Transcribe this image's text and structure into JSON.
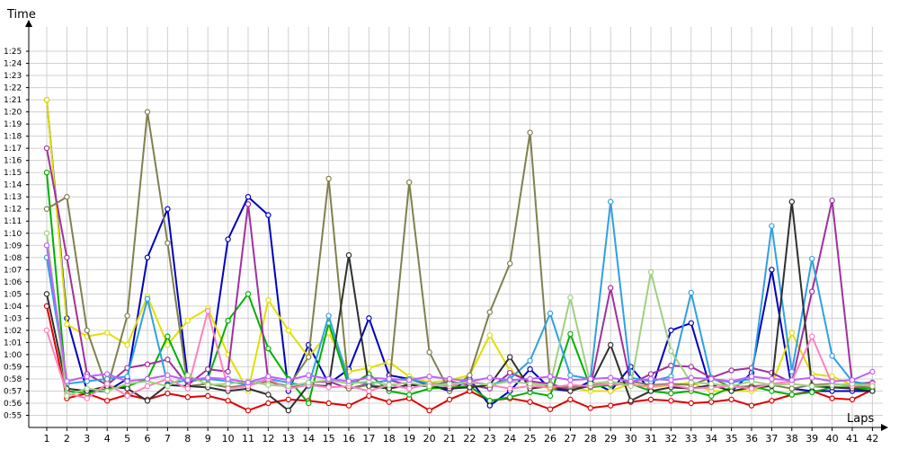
{
  "chart_data": {
    "type": "line",
    "ylabel": "Time",
    "xlabel": "Laps",
    "x_categories": [
      "1",
      "2",
      "3",
      "4",
      "5",
      "6",
      "7",
      "8",
      "9",
      "10",
      "11",
      "12",
      "13",
      "14",
      "15",
      "16",
      "17",
      "18",
      "19",
      "20",
      "21",
      "22",
      "23",
      "24",
      "25",
      "26",
      "27",
      "28",
      "29",
      "30",
      "31",
      "32",
      "33",
      "34",
      "35",
      "36",
      "37",
      "38",
      "39",
      "40",
      "41",
      "42"
    ],
    "y_tick_labels": [
      "0:55",
      "0:56",
      "0:57",
      "0:58",
      "0:59",
      "1:00",
      "1:01",
      "1:02",
      "1:03",
      "1:04",
      "1:05",
      "1:06",
      "1:07",
      "1:08",
      "1:09",
      "1:10",
      "1:11",
      "1:12",
      "1:13",
      "1:14",
      "1:15",
      "1:16",
      "1:17",
      "1:18",
      "1:19",
      "1:20",
      "1:21",
      "1:22",
      "1:23",
      "1:24",
      "1:25"
    ],
    "ylim_seconds": [
      54,
      87
    ],
    "grid": true,
    "legend": "none",
    "series": [
      {
        "color": "#e00000",
        "values": [
          64,
          56.4,
          56.8,
          56.2,
          56.7,
          56.3,
          56.8,
          56.5,
          56.6,
          56.2,
          55.4,
          56.0,
          56.3,
          56.2,
          56.0,
          55.8,
          56.6,
          56.1,
          56.4,
          55.4,
          56.3,
          57.0,
          56.2,
          56.4,
          56.1,
          55.5,
          56.3,
          55.6,
          55.8,
          56.1,
          56.3,
          56.2,
          56.0,
          56.1,
          56.3,
          55.8,
          56.2,
          56.7,
          57.0,
          56.4,
          56.3,
          57.1
        ]
      },
      {
        "color": "#0000c0",
        "values": [
          81,
          63,
          57,
          57,
          58,
          68,
          72,
          58,
          58,
          69.5,
          73,
          71.5,
          57,
          60.8,
          57.6,
          58.8,
          63,
          58.3,
          58,
          57.5,
          57,
          58,
          55.8,
          57,
          58.8,
          57.2,
          57,
          57.8,
          57,
          59,
          57,
          62,
          62.6,
          57,
          57,
          58.5,
          67,
          57.2,
          57,
          57,
          57,
          57
        ]
      },
      {
        "color": "#e0e000",
        "values": [
          81,
          62.5,
          61.5,
          61.8,
          60.8,
          64.8,
          60.8,
          62.8,
          63.8,
          60,
          57,
          64.5,
          62,
          59.8,
          61.8,
          58.6,
          58.9,
          59.4,
          58.2,
          57.7,
          57.9,
          58.3,
          61.6,
          58.7,
          57.7,
          57.2,
          57.3,
          57,
          57,
          57.6,
          57.3,
          57.5,
          57.7,
          57,
          57,
          57,
          57.5,
          61.8,
          58.4,
          58.2,
          57.5,
          57.3
        ]
      },
      {
        "color": "#00b000",
        "values": [
          75,
          57,
          56.8,
          57.2,
          57.4,
          58,
          61.5,
          57.8,
          58,
          62.8,
          65,
          60.5,
          58,
          56,
          62.6,
          57.4,
          58.4,
          57,
          56.7,
          57.2,
          57.3,
          57.4,
          56.2,
          56.5,
          56.9,
          56.6,
          61.7,
          57.3,
          57.5,
          57.6,
          57,
          56.8,
          57.0,
          56.6,
          57.3,
          57.4,
          57.0,
          56.7,
          56.9,
          57.3,
          57.3,
          57.2
        ]
      },
      {
        "color": "#a030a0",
        "values": [
          77,
          68,
          58.4,
          57.5,
          58.9,
          59.2,
          59.6,
          57.5,
          58.8,
          58.6,
          72.4,
          57.8,
          57.3,
          57.7,
          57.8,
          57.2,
          57.6,
          57.9,
          57.5,
          57.4,
          57.8,
          57.5,
          57.2,
          58.5,
          57.8,
          57.6,
          57.1,
          57.4,
          65.5,
          57.6,
          58.4,
          59.1,
          59.0,
          58.1,
          58.7,
          58.9,
          58.5,
          57.7,
          65.2,
          72.7,
          57.6,
          57.7
        ]
      },
      {
        "color": "#808050",
        "values": [
          72,
          73,
          62,
          57.2,
          63.2,
          80,
          69.2,
          57.4,
          57.6,
          57.3,
          57.5,
          57.8,
          57.4,
          59.8,
          74.5,
          57.2,
          57.5,
          57.3,
          74.2,
          60.2,
          57,
          58.3,
          63.5,
          67.5,
          78.3,
          57.4,
          57.3,
          57.5,
          57.6,
          57.8,
          57.5,
          57.6,
          57.5,
          58.1,
          57.3,
          57.4,
          57.5,
          57.2,
          57.5,
          57.6,
          57.4,
          57.3
        ]
      },
      {
        "color": "#30a0e0",
        "values": [
          68,
          57.6,
          57.8,
          58.0,
          58.2,
          64.6,
          57.6,
          57.9,
          58,
          57.8,
          57.5,
          58,
          57.7,
          57.4,
          63.2,
          57.8,
          57.6,
          57.9,
          58,
          57.6,
          57.6,
          57.8,
          57.5,
          58.0,
          59.5,
          63.4,
          58.3,
          58.0,
          72.6,
          58.1,
          57.8,
          58.2,
          65.1,
          58.0,
          57.7,
          58.0,
          70.6,
          58.6,
          67.9,
          59.9,
          57.8,
          57.5
        ]
      },
      {
        "color": "#303030",
        "values": [
          65,
          57.2,
          57.0,
          57.4,
          57.2,
          56.2,
          57.5,
          57.4,
          57.3,
          57.0,
          57.2,
          56.7,
          55.4,
          57.5,
          57.4,
          68.2,
          57.4,
          57.2,
          57.5,
          57.4,
          57.2,
          57.3,
          57.5,
          59.8,
          57.2,
          57.4,
          57.0,
          57.5,
          60.8,
          56.2,
          57.0,
          57.3,
          57.2,
          57.5,
          57.0,
          57.3,
          57.4,
          72.6,
          57.4,
          57.3,
          57.2,
          57.0
        ]
      },
      {
        "color": "#ff80c0",
        "values": [
          62,
          56.8,
          56.4,
          57.6,
          56.6,
          57.4,
          58,
          57.2,
          63.6,
          57.2,
          57.4,
          58.0,
          57.2,
          57.5,
          57.3,
          57.4,
          57.0,
          57.5,
          57.2,
          57.6,
          57.4,
          57.8,
          57.5,
          57.2,
          57.4,
          57.3,
          57.5,
          57.4,
          57.6,
          57.5,
          57.4,
          57.5,
          57.2,
          57.3,
          57.4,
          57.2,
          57.6,
          57.8,
          61.5,
          57.6,
          57.4,
          57.6
        ]
      },
      {
        "color": "#a0d080",
        "values": [
          70,
          56.6,
          57.2,
          57.0,
          57.6,
          57.8,
          57.4,
          58.3,
          57.5,
          57.6,
          57.8,
          57.5,
          57.4,
          57.7,
          57.9,
          57.6,
          57.8,
          57.5,
          57.7,
          57.4,
          57.6,
          57.7,
          57.5,
          57.8,
          57.6,
          57.5,
          64.7,
          57.6,
          57.8,
          57.4,
          66.8,
          60.3,
          57.7,
          57.6,
          57.4,
          57.8,
          57.5,
          57.6,
          57.4,
          57.5,
          57.6,
          57.4
        ]
      },
      {
        "color": "#c060ff",
        "values": [
          69,
          57.8,
          58.2,
          58.4,
          57.8,
          58.0,
          58.3,
          57.9,
          58.1,
          58.0,
          57.7,
          58.2,
          57.9,
          58.3,
          58.0,
          57.8,
          58.1,
          58.0,
          57.9,
          58.2,
          58.0,
          57.8,
          58.1,
          57.9,
          58.0,
          58.2,
          57.9,
          58.0,
          58.1,
          57.8,
          58.0,
          57.9,
          58.1,
          58.0,
          57.8,
          58.2,
          58.0,
          57.9,
          58.1,
          57.8,
          57.9,
          58.6
        ]
      }
    ]
  }
}
